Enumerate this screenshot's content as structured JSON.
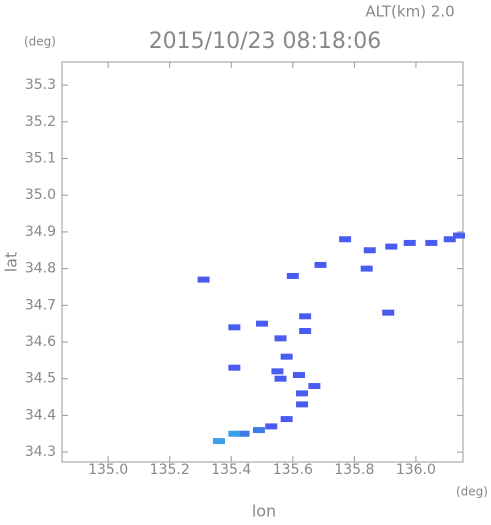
{
  "chart_data": {
    "type": "scatter",
    "title": "2015/10/23 08:18:06",
    "subtitle": "ALT(km) 2.0",
    "x_label": "lon",
    "x_unit": "(deg)",
    "y_label": "lat",
    "y_unit": "(deg)",
    "xlim": [
      134.85,
      136.153
    ],
    "ylim": [
      34.273,
      35.363
    ],
    "xticks": [
      {
        "value": 135,
        "label": "135.0"
      },
      135.2,
      135.4,
      135.6,
      135.8,
      {
        "value": 136,
        "label": "136.0"
      }
    ],
    "yticks": [
      34.3,
      34.4,
      34.5,
      34.6,
      34.7,
      34.8,
      34.9,
      {
        "value": 35,
        "label": "35.0"
      },
      35.1,
      35.2,
      35.3
    ],
    "series": [
      {
        "color": "#4a5cf0",
        "x": [
          135.85,
          135.92,
          135.98,
          136.05,
          136.11,
          136.14,
          135.77,
          135.6,
          135.31,
          135.69,
          135.84,
          135.91,
          135.41,
          135.5,
          135.64,
          135.64,
          135.56,
          135.58,
          135.55,
          135.56,
          135.41,
          135.62,
          135.67,
          135.63,
          135.63,
          135.58,
          135.53
        ],
        "values": [
          34.85,
          34.86,
          34.87,
          34.87,
          34.88,
          34.89,
          34.88,
          34.78,
          34.77,
          34.81,
          34.8,
          34.68,
          34.64,
          34.65,
          34.67,
          34.63,
          34.61,
          34.56,
          34.52,
          34.5,
          34.53,
          34.51,
          34.48,
          34.46,
          34.43,
          34.39,
          34.37
        ]
      },
      {
        "color": "#3f7be8",
        "x": [
          135.49,
          135.44
        ],
        "values": [
          34.36,
          34.35
        ]
      },
      {
        "color": "#3aa0e8",
        "x": [
          135.41,
          135.36
        ],
        "values": [
          34.35,
          34.33
        ]
      }
    ]
  }
}
